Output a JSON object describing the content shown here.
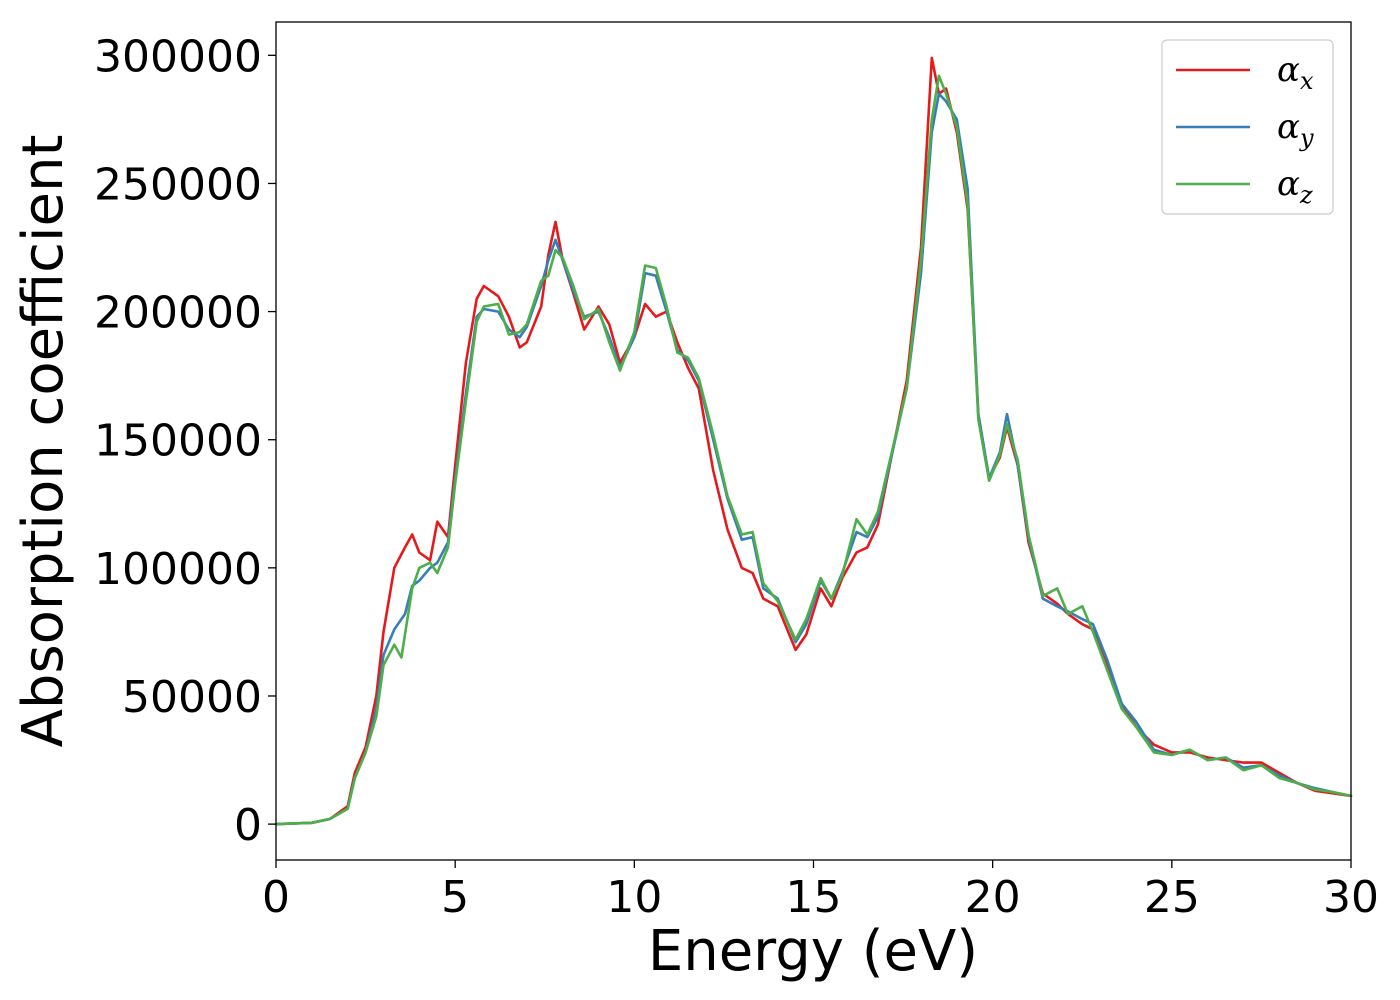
{
  "chart_data": {
    "type": "line",
    "title": "",
    "xlabel": "Energy (eV)",
    "ylabel": "Absorption coefficient",
    "xlim": [
      0,
      30
    ],
    "ylim": [
      -14000,
      313000
    ],
    "x_ticks": [
      0,
      5,
      10,
      15,
      20,
      25,
      30
    ],
    "y_ticks": [
      0,
      50000,
      100000,
      150000,
      200000,
      250000,
      300000
    ],
    "grid": false,
    "legend_position": "top-right",
    "series": [
      {
        "name": "α",
        "subscript": "x",
        "color": "#e41a1c",
        "points": [
          [
            0,
            0
          ],
          [
            1,
            500
          ],
          [
            1.5,
            2000
          ],
          [
            2,
            7000
          ],
          [
            2.2,
            20000
          ],
          [
            2.5,
            30000
          ],
          [
            2.8,
            50000
          ],
          [
            3.0,
            75000
          ],
          [
            3.3,
            100000
          ],
          [
            3.6,
            108000
          ],
          [
            3.8,
            113000
          ],
          [
            4.0,
            106000
          ],
          [
            4.3,
            103000
          ],
          [
            4.5,
            118000
          ],
          [
            4.8,
            112000
          ],
          [
            5.0,
            140000
          ],
          [
            5.3,
            180000
          ],
          [
            5.6,
            205000
          ],
          [
            5.8,
            210000
          ],
          [
            6.2,
            206000
          ],
          [
            6.5,
            198000
          ],
          [
            6.8,
            186000
          ],
          [
            7.0,
            188000
          ],
          [
            7.4,
            202000
          ],
          [
            7.6,
            222000
          ],
          [
            7.8,
            235000
          ],
          [
            8.0,
            220000
          ],
          [
            8.3,
            207000
          ],
          [
            8.6,
            193000
          ],
          [
            9.0,
            202000
          ],
          [
            9.3,
            195000
          ],
          [
            9.6,
            180000
          ],
          [
            10.0,
            190000
          ],
          [
            10.3,
            203000
          ],
          [
            10.6,
            198000
          ],
          [
            10.9,
            200000
          ],
          [
            11.2,
            188000
          ],
          [
            11.5,
            178000
          ],
          [
            11.8,
            170000
          ],
          [
            12.2,
            138000
          ],
          [
            12.6,
            115000
          ],
          [
            13.0,
            100000
          ],
          [
            13.3,
            98000
          ],
          [
            13.6,
            88000
          ],
          [
            14.0,
            85000
          ],
          [
            14.5,
            68000
          ],
          [
            14.8,
            74000
          ],
          [
            15.2,
            92000
          ],
          [
            15.5,
            85000
          ],
          [
            15.8,
            96000
          ],
          [
            16.2,
            106000
          ],
          [
            16.5,
            108000
          ],
          [
            16.8,
            117000
          ],
          [
            17.2,
            145000
          ],
          [
            17.6,
            173000
          ],
          [
            18.0,
            225000
          ],
          [
            18.3,
            299000
          ],
          [
            18.5,
            285000
          ],
          [
            18.7,
            287000
          ],
          [
            19.0,
            270000
          ],
          [
            19.3,
            240000
          ],
          [
            19.6,
            160000
          ],
          [
            19.9,
            135000
          ],
          [
            20.2,
            143000
          ],
          [
            20.4,
            155000
          ],
          [
            20.7,
            140000
          ],
          [
            21.0,
            110000
          ],
          [
            21.4,
            90000
          ],
          [
            21.8,
            86000
          ],
          [
            22.1,
            82000
          ],
          [
            22.5,
            78000
          ],
          [
            22.8,
            76000
          ],
          [
            23.2,
            62000
          ],
          [
            23.6,
            47000
          ],
          [
            24.0,
            38000
          ],
          [
            24.5,
            31000
          ],
          [
            25.0,
            28000
          ],
          [
            25.5,
            28000
          ],
          [
            26.0,
            26000
          ],
          [
            26.5,
            25000
          ],
          [
            27.0,
            24000
          ],
          [
            27.5,
            24000
          ],
          [
            28.0,
            20000
          ],
          [
            28.5,
            16000
          ],
          [
            29.0,
            13000
          ],
          [
            29.5,
            12000
          ],
          [
            30.0,
            11000
          ]
        ]
      },
      {
        "name": "α",
        "subscript": "y",
        "color": "#377eb8",
        "points": [
          [
            0,
            0
          ],
          [
            1,
            500
          ],
          [
            1.5,
            2000
          ],
          [
            2,
            6000
          ],
          [
            2.2,
            18000
          ],
          [
            2.5,
            28000
          ],
          [
            2.8,
            45000
          ],
          [
            3.0,
            66000
          ],
          [
            3.3,
            76000
          ],
          [
            3.6,
            82000
          ],
          [
            3.8,
            93000
          ],
          [
            4.0,
            95000
          ],
          [
            4.3,
            100000
          ],
          [
            4.5,
            102000
          ],
          [
            4.8,
            110000
          ],
          [
            5.0,
            135000
          ],
          [
            5.3,
            168000
          ],
          [
            5.6,
            198000
          ],
          [
            5.8,
            201000
          ],
          [
            6.2,
            200000
          ],
          [
            6.5,
            193000
          ],
          [
            6.8,
            190000
          ],
          [
            7.0,
            194000
          ],
          [
            7.4,
            210000
          ],
          [
            7.6,
            220000
          ],
          [
            7.8,
            228000
          ],
          [
            8.0,
            220000
          ],
          [
            8.3,
            208000
          ],
          [
            8.6,
            198000
          ],
          [
            9.0,
            200000
          ],
          [
            9.3,
            190000
          ],
          [
            9.6,
            178000
          ],
          [
            10.0,
            190000
          ],
          [
            10.3,
            215000
          ],
          [
            10.6,
            214000
          ],
          [
            10.9,
            200000
          ],
          [
            11.2,
            185000
          ],
          [
            11.5,
            181000
          ],
          [
            11.8,
            173000
          ],
          [
            12.2,
            150000
          ],
          [
            12.6,
            127000
          ],
          [
            13.0,
            111000
          ],
          [
            13.3,
            112000
          ],
          [
            13.6,
            92000
          ],
          [
            14.0,
            88000
          ],
          [
            14.5,
            71000
          ],
          [
            14.8,
            78000
          ],
          [
            15.2,
            95000
          ],
          [
            15.5,
            88000
          ],
          [
            15.8,
            98000
          ],
          [
            16.2,
            114000
          ],
          [
            16.5,
            112000
          ],
          [
            16.8,
            120000
          ],
          [
            17.2,
            145000
          ],
          [
            17.6,
            170000
          ],
          [
            18.0,
            215000
          ],
          [
            18.3,
            270000
          ],
          [
            18.5,
            285000
          ],
          [
            18.7,
            282000
          ],
          [
            19.0,
            275000
          ],
          [
            19.3,
            248000
          ],
          [
            19.6,
            160000
          ],
          [
            19.9,
            135000
          ],
          [
            20.2,
            145000
          ],
          [
            20.4,
            160000
          ],
          [
            20.7,
            140000
          ],
          [
            21.0,
            112000
          ],
          [
            21.4,
            88000
          ],
          [
            21.8,
            85000
          ],
          [
            22.1,
            83000
          ],
          [
            22.5,
            80000
          ],
          [
            22.8,
            78000
          ],
          [
            23.2,
            64000
          ],
          [
            23.6,
            47000
          ],
          [
            24.0,
            40000
          ],
          [
            24.5,
            29000
          ],
          [
            25.0,
            27000
          ],
          [
            25.5,
            29000
          ],
          [
            26.0,
            25000
          ],
          [
            26.5,
            26000
          ],
          [
            27.0,
            22000
          ],
          [
            27.5,
            23000
          ],
          [
            28.0,
            19000
          ],
          [
            28.5,
            16000
          ],
          [
            29.0,
            14000
          ],
          [
            29.5,
            12500
          ],
          [
            30.0,
            11000
          ]
        ]
      },
      {
        "name": "α",
        "subscript": "z",
        "color": "#4daf4a",
        "points": [
          [
            0,
            0
          ],
          [
            1,
            500
          ],
          [
            1.5,
            2000
          ],
          [
            2,
            6000
          ],
          [
            2.2,
            18000
          ],
          [
            2.5,
            28000
          ],
          [
            2.8,
            42000
          ],
          [
            3.0,
            62000
          ],
          [
            3.3,
            70000
          ],
          [
            3.5,
            65000
          ],
          [
            3.8,
            92000
          ],
          [
            4.0,
            100000
          ],
          [
            4.3,
            102000
          ],
          [
            4.5,
            98000
          ],
          [
            4.8,
            108000
          ],
          [
            5.0,
            133000
          ],
          [
            5.3,
            165000
          ],
          [
            5.6,
            196000
          ],
          [
            5.8,
            202000
          ],
          [
            6.2,
            203000
          ],
          [
            6.5,
            191000
          ],
          [
            6.8,
            192000
          ],
          [
            7.0,
            195000
          ],
          [
            7.4,
            212000
          ],
          [
            7.6,
            214000
          ],
          [
            7.8,
            224000
          ],
          [
            8.0,
            221000
          ],
          [
            8.3,
            210000
          ],
          [
            8.6,
            197000
          ],
          [
            9.0,
            201000
          ],
          [
            9.3,
            188000
          ],
          [
            9.6,
            177000
          ],
          [
            10.0,
            192000
          ],
          [
            10.3,
            218000
          ],
          [
            10.6,
            217000
          ],
          [
            10.9,
            202000
          ],
          [
            11.2,
            184000
          ],
          [
            11.5,
            182000
          ],
          [
            11.8,
            174000
          ],
          [
            12.2,
            152000
          ],
          [
            12.6,
            128000
          ],
          [
            13.0,
            113000
          ],
          [
            13.3,
            114000
          ],
          [
            13.6,
            94000
          ],
          [
            14.0,
            87000
          ],
          [
            14.5,
            72000
          ],
          [
            14.8,
            80000
          ],
          [
            15.2,
            96000
          ],
          [
            15.5,
            88000
          ],
          [
            15.8,
            97000
          ],
          [
            16.2,
            119000
          ],
          [
            16.5,
            113000
          ],
          [
            16.8,
            122000
          ],
          [
            17.2,
            146000
          ],
          [
            17.6,
            170000
          ],
          [
            18.0,
            220000
          ],
          [
            18.3,
            275000
          ],
          [
            18.5,
            292000
          ],
          [
            18.7,
            285000
          ],
          [
            19.0,
            272000
          ],
          [
            19.3,
            242000
          ],
          [
            19.6,
            158000
          ],
          [
            19.9,
            134000
          ],
          [
            20.2,
            144000
          ],
          [
            20.4,
            156000
          ],
          [
            20.7,
            142000
          ],
          [
            21.0,
            113000
          ],
          [
            21.4,
            89000
          ],
          [
            21.8,
            92000
          ],
          [
            22.1,
            82000
          ],
          [
            22.5,
            85000
          ],
          [
            22.8,
            75000
          ],
          [
            23.2,
            60000
          ],
          [
            23.6,
            45000
          ],
          [
            24.0,
            38000
          ],
          [
            24.5,
            28000
          ],
          [
            25.0,
            27000
          ],
          [
            25.5,
            29000
          ],
          [
            26.0,
            25000
          ],
          [
            26.5,
            26000
          ],
          [
            27.0,
            21000
          ],
          [
            27.5,
            23000
          ],
          [
            28.0,
            18000
          ],
          [
            28.5,
            16000
          ],
          [
            29.0,
            13500
          ],
          [
            29.5,
            12500
          ],
          [
            30.0,
            11000
          ]
        ]
      }
    ]
  }
}
